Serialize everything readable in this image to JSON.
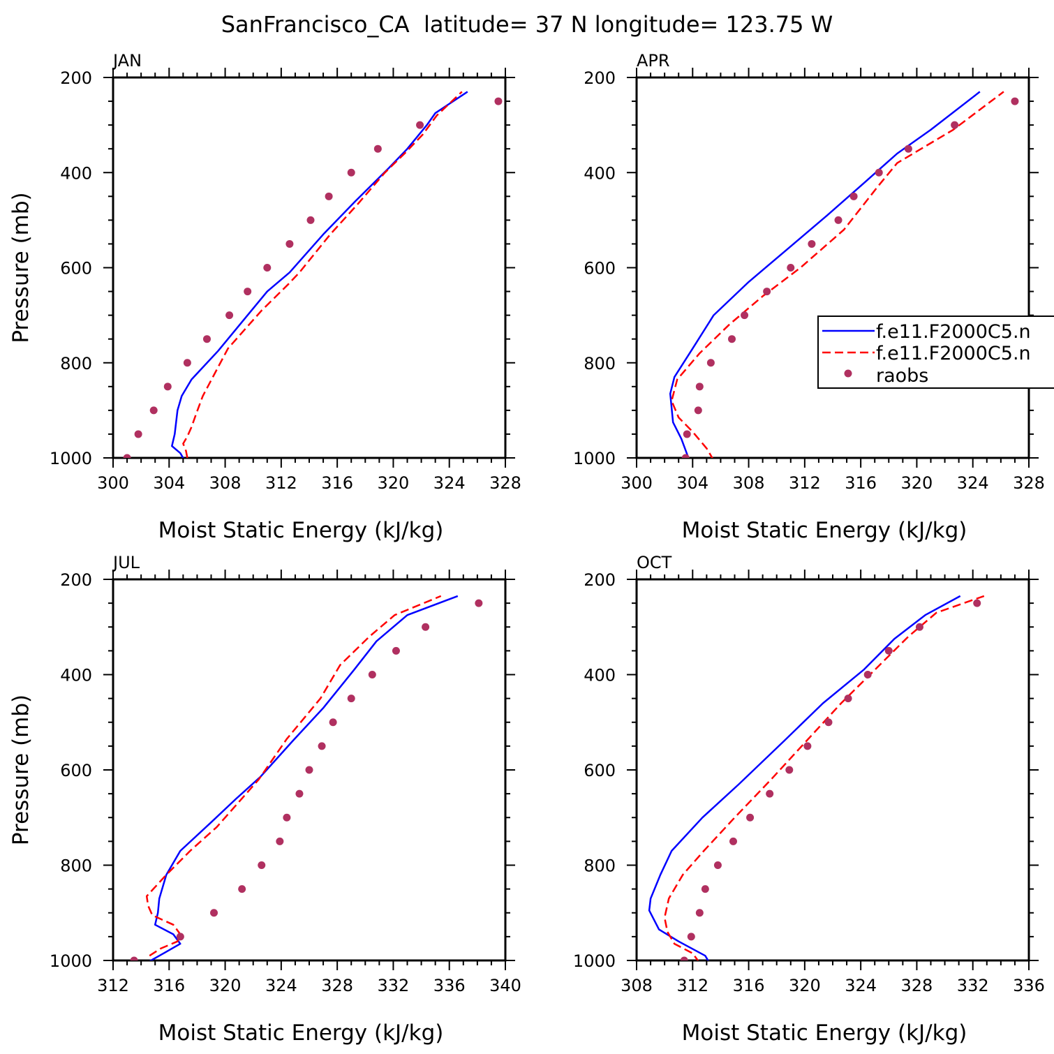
{
  "figure": {
    "title": "SanFrancisco_CA  latitude= 37 N longitude= 123.75 W"
  },
  "legend": {
    "entries": [
      {
        "label": "f.e11.F2000C5.n",
        "style": "solid",
        "color": "#0000ff"
      },
      {
        "label": "f.e11.F2000C5.n",
        "style": "dashed",
        "color": "#ff0000"
      },
      {
        "label": "raobs",
        "style": "dot",
        "color": "#b03060"
      }
    ]
  },
  "chart_data": [
    {
      "type": "line",
      "panel": "JAN",
      "xlabel": "Moist Static Energy (kJ/kg)",
      "ylabel": "Pressure (mb)",
      "xlim": [
        300,
        328
      ],
      "ylim": [
        1000,
        200
      ],
      "xticks": [
        300,
        304,
        308,
        312,
        316,
        320,
        324,
        328
      ],
      "yticks": [
        200,
        400,
        600,
        800,
        1000
      ],
      "series": [
        {
          "style": "solid",
          "color": "#0000ff",
          "points": [
            [
              305.2,
              1010
            ],
            [
              304.8,
              990
            ],
            [
              304.2,
              975
            ],
            [
              304.4,
              950
            ],
            [
              304.5,
              925
            ],
            [
              304.6,
              900
            ],
            [
              304.9,
              870
            ],
            [
              305.6,
              835
            ],
            [
              307.5,
              775
            ],
            [
              309.6,
              700
            ],
            [
              311.0,
              650
            ],
            [
              312.6,
              610
            ],
            [
              315.0,
              530
            ],
            [
              317.3,
              460
            ],
            [
              319.7,
              390
            ],
            [
              321.0,
              350
            ],
            [
              322.4,
              300
            ],
            [
              323.0,
              275
            ],
            [
              325.3,
              230
            ]
          ]
        },
        {
          "style": "dashed",
          "color": "#ff0000",
          "points": [
            [
              305.3,
              1000
            ],
            [
              305.2,
              985
            ],
            [
              305.0,
              970
            ],
            [
              305.3,
              955
            ],
            [
              305.6,
              935
            ],
            [
              305.9,
              910
            ],
            [
              306.4,
              870
            ],
            [
              308.2,
              770
            ],
            [
              310.6,
              690
            ],
            [
              312.5,
              635
            ],
            [
              313.3,
              610
            ],
            [
              315.5,
              530
            ],
            [
              317.5,
              465
            ],
            [
              319.4,
              400
            ],
            [
              320.8,
              360
            ],
            [
              322.1,
              320
            ],
            [
              323.1,
              280
            ],
            [
              324.9,
              230
            ]
          ]
        },
        {
          "style": "dot",
          "color": "#b03060",
          "points": [
            [
              301.0,
              1000
            ],
            [
              301.8,
              950
            ],
            [
              302.9,
              900
            ],
            [
              303.9,
              850
            ],
            [
              305.3,
              800
            ],
            [
              306.7,
              750
            ],
            [
              308.3,
              700
            ],
            [
              309.6,
              650
            ],
            [
              311.0,
              600
            ],
            [
              312.6,
              550
            ],
            [
              314.1,
              500
            ],
            [
              315.4,
              450
            ],
            [
              317.0,
              400
            ],
            [
              318.9,
              350
            ],
            [
              321.9,
              300
            ],
            [
              327.5,
              250
            ]
          ]
        }
      ]
    },
    {
      "type": "line",
      "panel": "APR",
      "xlabel": "Moist Static Energy (kJ/kg)",
      "ylabel": "",
      "xlim": [
        300,
        328
      ],
      "ylim": [
        1000,
        200
      ],
      "xticks": [
        300,
        304,
        308,
        312,
        316,
        320,
        324,
        328
      ],
      "yticks": [
        200,
        400,
        600,
        800,
        1000
      ],
      "series": [
        {
          "style": "solid",
          "color": "#0000ff",
          "points": [
            [
              303.7,
              1000
            ],
            [
              303.2,
              960
            ],
            [
              302.6,
              925
            ],
            [
              302.5,
              895
            ],
            [
              302.4,
              865
            ],
            [
              302.7,
              830
            ],
            [
              304.0,
              770
            ],
            [
              305.5,
              700
            ],
            [
              308.0,
              630
            ],
            [
              310.8,
              560
            ],
            [
              313.6,
              490
            ],
            [
              316.3,
              420
            ],
            [
              318.6,
              360
            ],
            [
              321.0,
              310
            ],
            [
              324.5,
              230
            ]
          ]
        },
        {
          "style": "dashed",
          "color": "#ff0000",
          "points": [
            [
              305.5,
              1005
            ],
            [
              305.0,
              980
            ],
            [
              304.0,
              945
            ],
            [
              303.0,
              915
            ],
            [
              302.5,
              880
            ],
            [
              302.9,
              835
            ],
            [
              304.5,
              780
            ],
            [
              306.6,
              720
            ],
            [
              309.0,
              660
            ],
            [
              311.7,
              600
            ],
            [
              314.8,
              520
            ],
            [
              317.2,
              430
            ],
            [
              318.6,
              380
            ],
            [
              322.6,
              310
            ],
            [
              326.2,
              230
            ]
          ]
        },
        {
          "style": "dot",
          "color": "#b03060",
          "points": [
            [
              303.5,
              1000
            ],
            [
              303.6,
              950
            ],
            [
              304.4,
              900
            ],
            [
              304.5,
              850
            ],
            [
              305.3,
              800
            ],
            [
              306.8,
              750
            ],
            [
              307.7,
              700
            ],
            [
              309.3,
              650
            ],
            [
              311.0,
              600
            ],
            [
              312.5,
              550
            ],
            [
              314.4,
              500
            ],
            [
              315.5,
              450
            ],
            [
              317.3,
              400
            ],
            [
              319.4,
              350
            ],
            [
              322.7,
              300
            ],
            [
              327.0,
              250
            ]
          ]
        }
      ]
    },
    {
      "type": "line",
      "panel": "JUL",
      "xlabel": "Moist Static Energy (kJ/kg)",
      "ylabel": "Pressure (mb)",
      "xlim": [
        312,
        340
      ],
      "ylim": [
        1000,
        200
      ],
      "xticks": [
        312,
        316,
        320,
        324,
        328,
        332,
        336,
        340
      ],
      "yticks": [
        200,
        400,
        600,
        800,
        1000
      ],
      "series": [
        {
          "style": "solid",
          "color": "#0000ff",
          "points": [
            [
              314.4,
              1005
            ],
            [
              315.6,
              985
            ],
            [
              316.8,
              965
            ],
            [
              316.3,
              945
            ],
            [
              315.0,
              925
            ],
            [
              315.2,
              900
            ],
            [
              315.3,
              870
            ],
            [
              315.8,
              820
            ],
            [
              316.8,
              770
            ],
            [
              319.0,
              710
            ],
            [
              320.8,
              660
            ],
            [
              322.5,
              615
            ],
            [
              324.8,
              540
            ],
            [
              327.0,
              470
            ],
            [
              329.2,
              390
            ],
            [
              330.8,
              330
            ],
            [
              333.0,
              275
            ],
            [
              336.6,
              235
            ]
          ]
        },
        {
          "style": "dashed",
          "color": "#ff0000",
          "points": [
            [
              314.6,
              990
            ],
            [
              315.4,
              975
            ],
            [
              316.6,
              960
            ],
            [
              316.8,
              945
            ],
            [
              316.3,
              925
            ],
            [
              314.8,
              905
            ],
            [
              314.5,
              885
            ],
            [
              314.4,
              865
            ],
            [
              315.8,
              820
            ],
            [
              317.5,
              770
            ],
            [
              319.4,
              720
            ],
            [
              322.4,
              620
            ],
            [
              324.4,
              535
            ],
            [
              326.8,
              450
            ],
            [
              328.2,
              380
            ],
            [
              330.3,
              320
            ],
            [
              332.1,
              275
            ],
            [
              335.4,
              235
            ]
          ]
        },
        {
          "style": "dot",
          "color": "#b03060",
          "points": [
            [
              313.5,
              1000
            ],
            [
              316.8,
              950
            ],
            [
              319.2,
              900
            ],
            [
              321.2,
              850
            ],
            [
              322.6,
              800
            ],
            [
              323.9,
              750
            ],
            [
              324.4,
              700
            ],
            [
              325.3,
              650
            ],
            [
              326.0,
              600
            ],
            [
              326.9,
              550
            ],
            [
              327.7,
              500
            ],
            [
              329.0,
              450
            ],
            [
              330.5,
              400
            ],
            [
              332.2,
              350
            ],
            [
              334.3,
              300
            ],
            [
              338.1,
              250
            ]
          ]
        }
      ]
    },
    {
      "type": "line",
      "panel": "OCT",
      "xlabel": "Moist Static Energy (kJ/kg)",
      "ylabel": "",
      "xlim": [
        308,
        336
      ],
      "ylim": [
        1000,
        200
      ],
      "xticks": [
        308,
        312,
        316,
        320,
        324,
        328,
        332,
        336
      ],
      "yticks": [
        200,
        400,
        600,
        800,
        1000
      ],
      "series": [
        {
          "style": "solid",
          "color": "#0000ff",
          "points": [
            [
              313.2,
              1005
            ],
            [
              312.9,
              990
            ],
            [
              311.0,
              960
            ],
            [
              309.6,
              935
            ],
            [
              308.9,
              895
            ],
            [
              309.0,
              870
            ],
            [
              309.7,
              820
            ],
            [
              310.5,
              770
            ],
            [
              312.7,
              700
            ],
            [
              315.3,
              630
            ],
            [
              318.5,
              540
            ],
            [
              321.3,
              460
            ],
            [
              324.2,
              390
            ],
            [
              326.4,
              325
            ],
            [
              328.6,
              275
            ],
            [
              331.1,
              235
            ]
          ]
        },
        {
          "style": "dashed",
          "color": "#ff0000",
          "points": [
            [
              312.5,
              1005
            ],
            [
              312.0,
              985
            ],
            [
              310.7,
              965
            ],
            [
              310.2,
              940
            ],
            [
              310.0,
              910
            ],
            [
              310.3,
              870
            ],
            [
              311.3,
              820
            ],
            [
              312.8,
              770
            ],
            [
              315.0,
              700
            ],
            [
              317.6,
              620
            ],
            [
              320.1,
              540
            ],
            [
              322.6,
              460
            ],
            [
              325.0,
              390
            ],
            [
              327.4,
              320
            ],
            [
              329.4,
              270
            ],
            [
              332.8,
              235
            ]
          ]
        },
        {
          "style": "dot",
          "color": "#b03060",
          "points": [
            [
              311.4,
              1000
            ],
            [
              311.9,
              950
            ],
            [
              312.5,
              900
            ],
            [
              312.9,
              850
            ],
            [
              313.8,
              800
            ],
            [
              314.9,
              750
            ],
            [
              316.1,
              700
            ],
            [
              317.5,
              650
            ],
            [
              318.9,
              600
            ],
            [
              320.2,
              550
            ],
            [
              321.7,
              500
            ],
            [
              323.1,
              450
            ],
            [
              324.5,
              400
            ],
            [
              326.0,
              350
            ],
            [
              328.2,
              300
            ],
            [
              332.3,
              250
            ]
          ]
        }
      ]
    }
  ]
}
